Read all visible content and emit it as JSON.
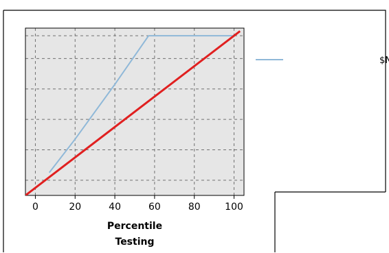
{
  "chart_data": {
    "type": "line",
    "title": "",
    "xlabel_lines": [
      "Percentile",
      "Testing"
    ],
    "ylabel": "",
    "xlim": [
      -5,
      105
    ],
    "ylim": [
      -5,
      105
    ],
    "xticks": [
      0,
      20,
      40,
      60,
      80,
      100
    ],
    "xtick_labels": [
      "0",
      "20",
      "40",
      "60",
      "80",
      "100"
    ],
    "ygrid": [
      5,
      25,
      45,
      65,
      85,
      100
    ],
    "grid": true,
    "legend_position": "right",
    "series": [
      {
        "name": "$N-شاخص نهایی",
        "color": "#8fb8d8",
        "x": [
          7,
          20,
          40,
          57,
          100
        ],
        "y": [
          10,
          32,
          68,
          100,
          100
        ]
      },
      {
        "color": "#e02020",
        "x": [
          -5,
          103
        ],
        "y": [
          -5,
          103
        ]
      }
    ]
  },
  "colors": {
    "plot_background": "#e6e6e6",
    "grid": "#707070",
    "axis": "#000000",
    "frame": "#000000"
  }
}
